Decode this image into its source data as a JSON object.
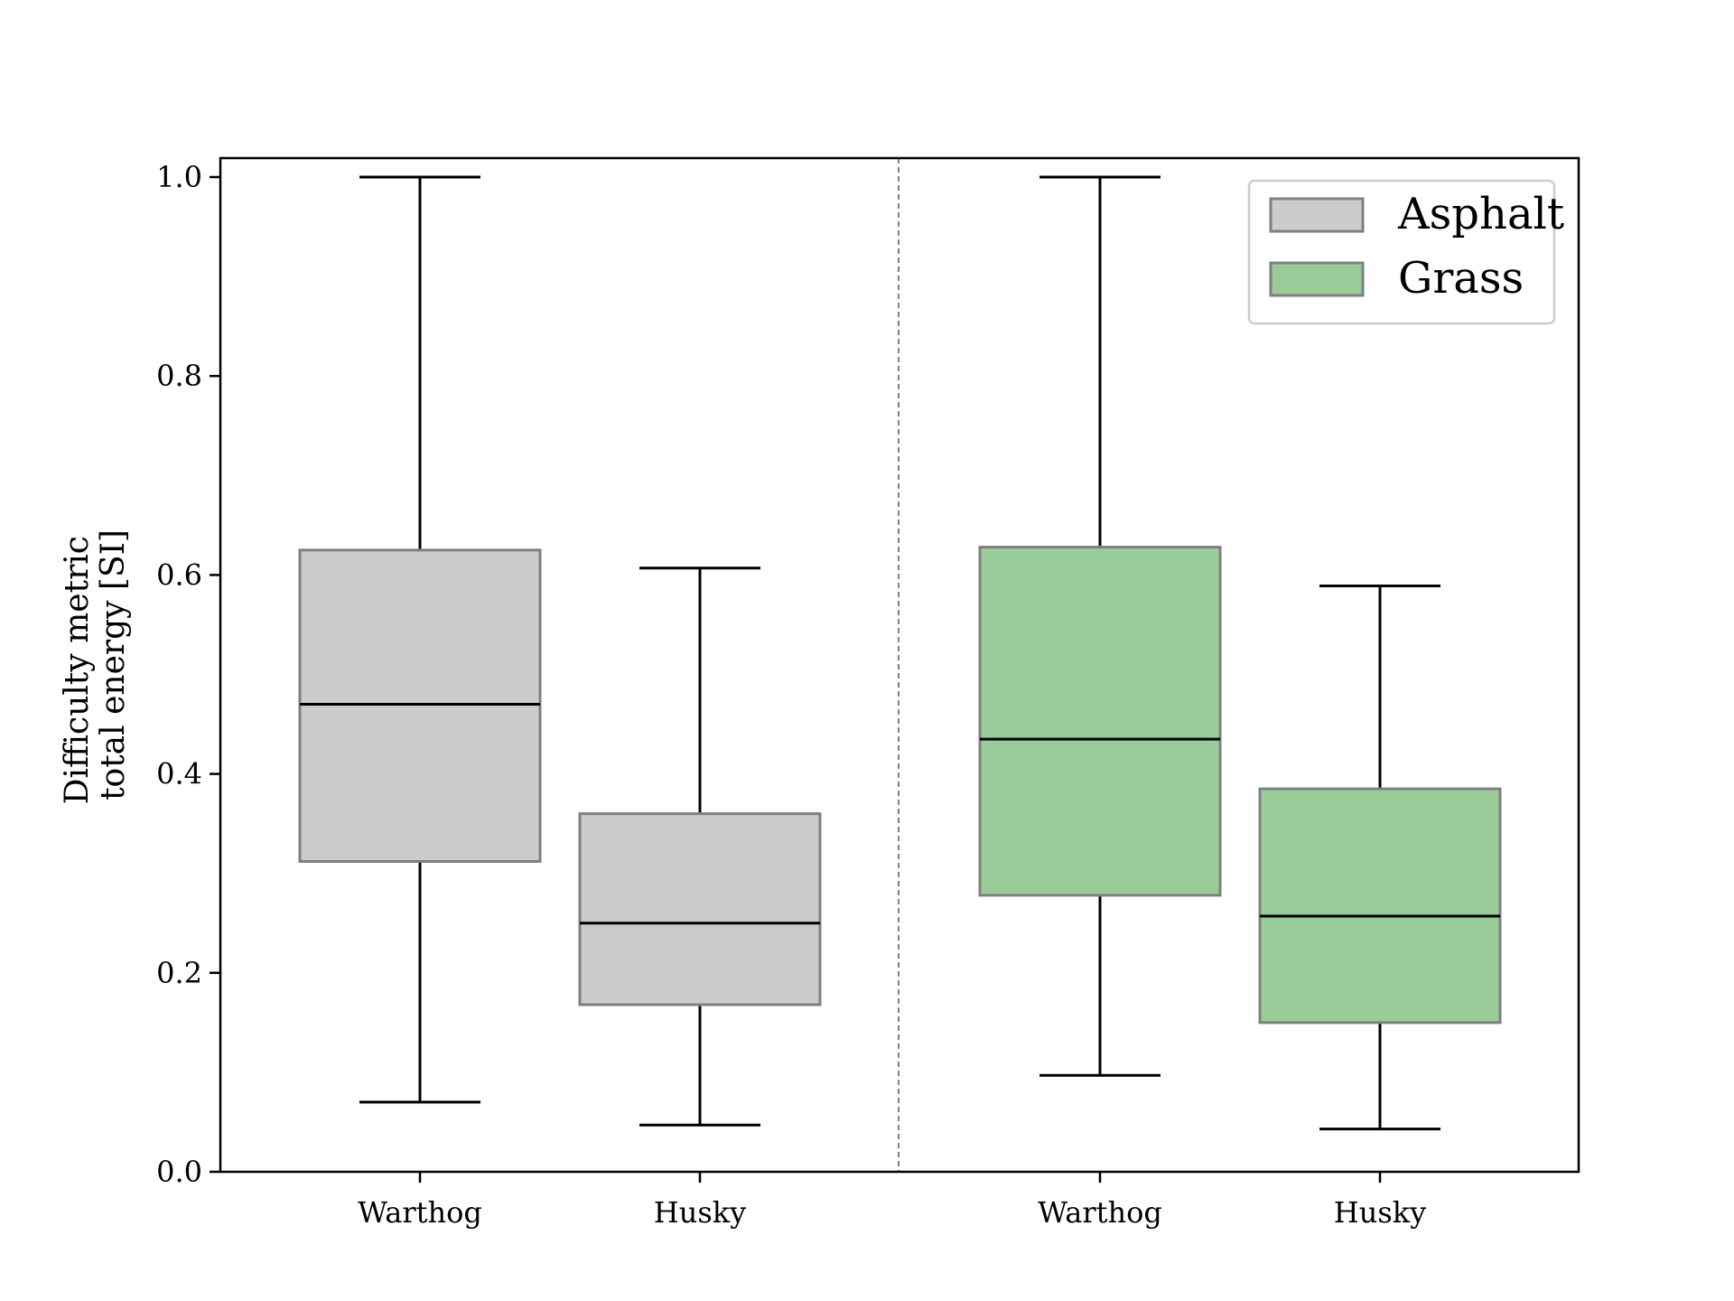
{
  "chart_data": {
    "type": "box",
    "title": "",
    "ylabel_lines": [
      "Difficulty metric",
      "total energy [SI]"
    ],
    "ylim": [
      0.0,
      1.0
    ],
    "yticks": [
      "0.0",
      "0.2",
      "0.4",
      "0.6",
      "0.8",
      "1.0"
    ],
    "grid": false,
    "legend_position": "top-right",
    "series": [
      {
        "name": "Asphalt",
        "color": "#cccccc",
        "edge_color": "#808080",
        "boxes": [
          {
            "label": "Warthog",
            "min": 0.07,
            "q1": 0.312,
            "median": 0.47,
            "q3": 0.625,
            "max": 1.0
          },
          {
            "label": "Husky",
            "min": 0.047,
            "q1": 0.168,
            "median": 0.25,
            "q3": 0.36,
            "max": 0.607
          }
        ]
      },
      {
        "name": "Grass",
        "color": "#99cc99",
        "edge_color": "#808080",
        "boxes": [
          {
            "label": "Warthog",
            "min": 0.097,
            "q1": 0.278,
            "median": 0.435,
            "q3": 0.628,
            "max": 1.0
          },
          {
            "label": "Husky",
            "min": 0.043,
            "q1": 0.15,
            "median": 0.257,
            "q3": 0.385,
            "max": 0.589
          }
        ]
      }
    ]
  }
}
